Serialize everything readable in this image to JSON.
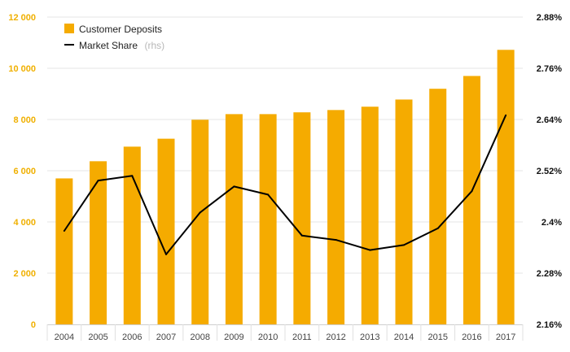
{
  "chart_data": {
    "type": "bar",
    "categories": [
      "2004",
      "2005",
      "2006",
      "2007",
      "2008",
      "2009",
      "2010",
      "2011",
      "2012",
      "2013",
      "2014",
      "2015",
      "2016",
      "2017"
    ],
    "series": [
      {
        "name": "Customer Deposits",
        "type": "bar",
        "axis": "left",
        "color": "#f5ab00",
        "values": [
          5700,
          6370,
          6940,
          7250,
          7990,
          8210,
          8210,
          8280,
          8370,
          8500,
          8780,
          9200,
          9700,
          10720
        ]
      },
      {
        "name": "Market Share",
        "type": "line",
        "axis": "right",
        "color": "#000000",
        "values": [
          2.379,
          2.497,
          2.508,
          2.324,
          2.422,
          2.483,
          2.464,
          2.368,
          2.358,
          2.334,
          2.346,
          2.385,
          2.472,
          2.65
        ]
      }
    ],
    "legend": {
      "position": "top-left",
      "items": [
        {
          "label": "Customer Deposits",
          "suffix": ""
        },
        {
          "label": "Market Share",
          "suffix": "(rhs)"
        }
      ]
    },
    "y_left": {
      "ylim": [
        0,
        12000
      ],
      "ticks": [
        0,
        2000,
        4000,
        6000,
        8000,
        10000,
        12000
      ],
      "tick_labels": [
        "0",
        "2 000",
        "4 000",
        "6 000",
        "8 000",
        "10 000",
        "12 000"
      ],
      "color": "#f0b000"
    },
    "y_right": {
      "ylim": [
        2.16,
        2.88
      ],
      "ticks": [
        2.16,
        2.28,
        2.4,
        2.52,
        2.64,
        2.76,
        2.88
      ],
      "tick_labels": [
        "2.16%",
        "2.28%",
        "2.4%",
        "2.52%",
        "2.64%",
        "2.76%",
        "2.88%"
      ],
      "color": "#111111"
    },
    "grid": true
  }
}
